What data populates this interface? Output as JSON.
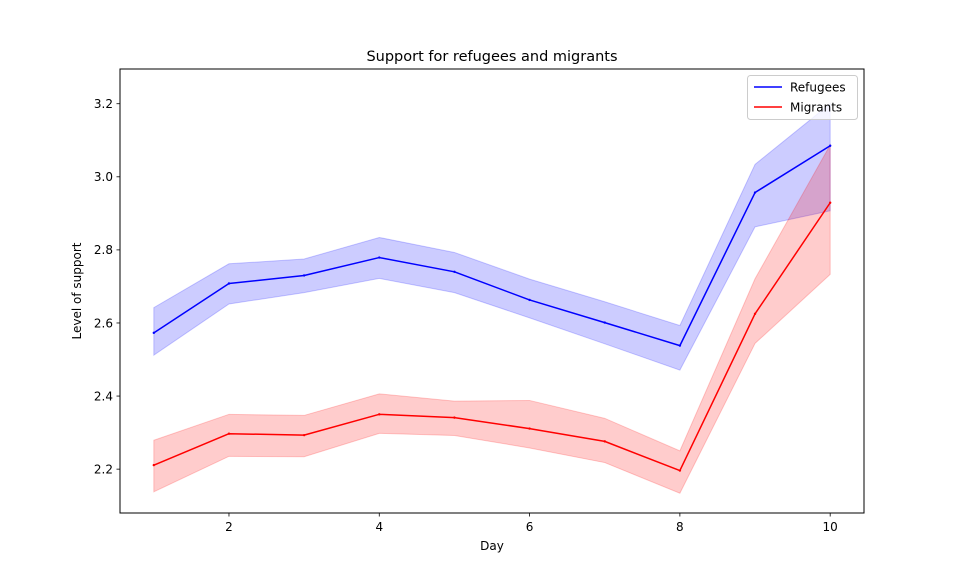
{
  "chart_data": {
    "type": "line",
    "title": "Support for refugees and migrants",
    "xlabel": "Day",
    "ylabel": "Level of support",
    "x": [
      1,
      2,
      3,
      4,
      5,
      6,
      7,
      8,
      9,
      10
    ],
    "xlim": [
      0.55,
      10.45
    ],
    "ylim": [
      2.08,
      3.295
    ],
    "xticks": [
      2,
      4,
      6,
      8,
      10
    ],
    "yticks": [
      2.2,
      2.4,
      2.6,
      2.8,
      3.0,
      3.2
    ],
    "ytick_labels": [
      "2.2",
      "2.4",
      "2.6",
      "2.8",
      "3.0",
      "3.2"
    ],
    "grid": false,
    "legend_position": "top-right",
    "series": [
      {
        "name": "Refugees",
        "color": "#0000ff",
        "values": [
          2.573,
          2.708,
          2.73,
          2.779,
          2.74,
          2.663,
          2.601,
          2.538,
          2.957,
          3.085
        ],
        "lower": [
          2.512,
          2.652,
          2.683,
          2.722,
          2.683,
          2.614,
          2.543,
          2.471,
          2.863,
          2.907
        ],
        "upper": [
          2.642,
          2.762,
          2.775,
          2.834,
          2.793,
          2.72,
          2.658,
          2.593,
          3.034,
          3.2
        ]
      },
      {
        "name": "Migrants",
        "color": "#ff0000",
        "values": [
          2.211,
          2.297,
          2.293,
          2.35,
          2.341,
          2.311,
          2.276,
          2.196,
          2.625,
          2.929
        ],
        "lower": [
          2.138,
          2.235,
          2.234,
          2.298,
          2.292,
          2.258,
          2.218,
          2.134,
          2.544,
          2.733
        ],
        "upper": [
          2.279,
          2.35,
          2.347,
          2.406,
          2.386,
          2.388,
          2.339,
          2.25,
          2.721,
          3.087
        ]
      }
    ]
  }
}
